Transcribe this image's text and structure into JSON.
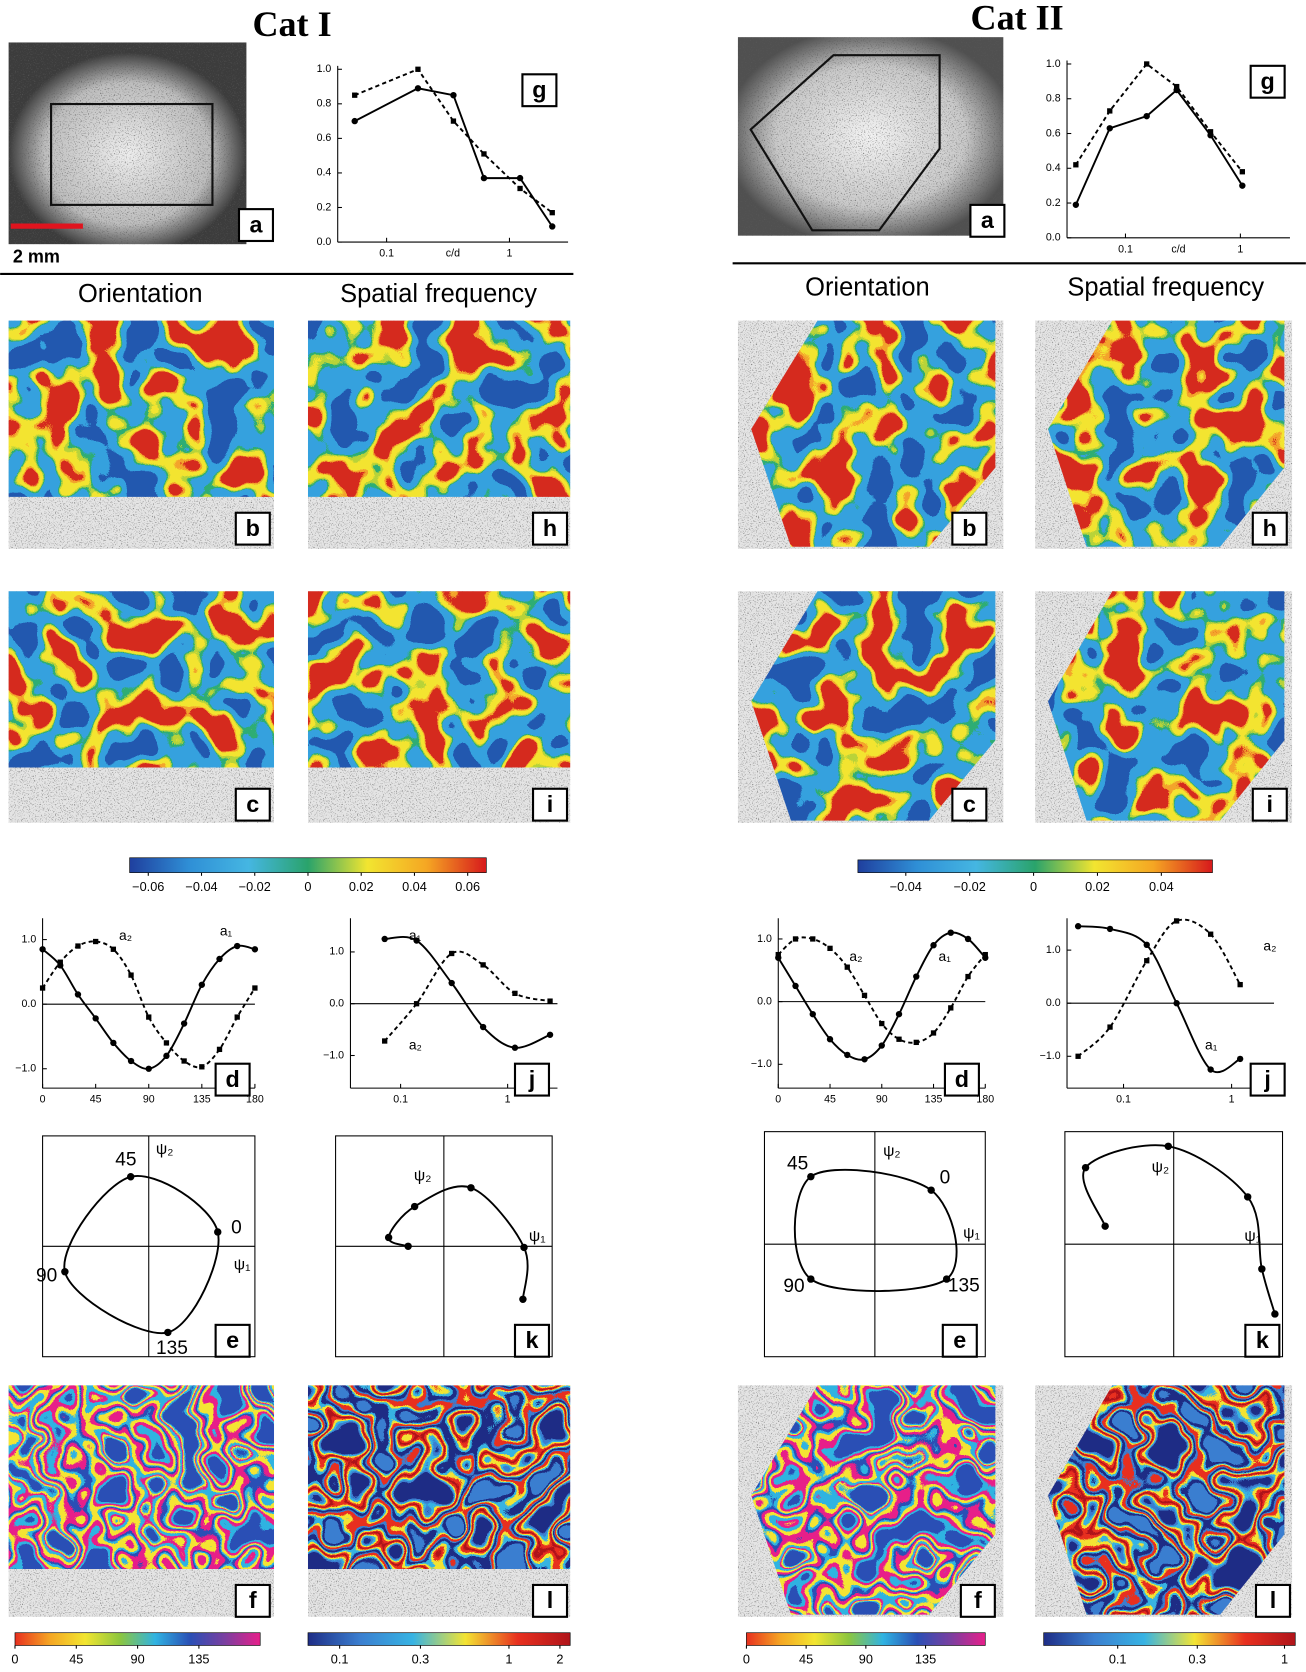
{
  "columns": [
    {
      "title": "Cat I",
      "scale_label": "2 mm",
      "headers": [
        "Orientation",
        "Spatial frequency"
      ],
      "letters": [
        "a",
        "b",
        "c",
        "d",
        "e",
        "f",
        "g",
        "h",
        "i",
        "j",
        "k",
        "l"
      ]
    },
    {
      "title": "Cat II",
      "headers": [
        "Orientation",
        "Spatial frequency"
      ],
      "letters": [
        "a",
        "b",
        "c",
        "d",
        "e",
        "f",
        "g",
        "h",
        "i",
        "j",
        "k",
        "l"
      ]
    }
  ],
  "chart_data": [
    {
      "type": "line",
      "xscale": "log",
      "xlabel": "c/d",
      "x": [
        0.055,
        0.18,
        0.35,
        0.62,
        1.22,
        2.23
      ],
      "series": [
        {
          "color": "#000000",
          "marker": "circle",
          "values": [
            0.7,
            0.89,
            0.85,
            0.37,
            0.37,
            0.09
          ]
        },
        {
          "color": "#000000",
          "marker": "square",
          "dash": true,
          "values": [
            0.85,
            1.0,
            0.7,
            0.51,
            0.31,
            0.17
          ]
        }
      ],
      "xlim": [
        0.04,
        3
      ],
      "ylim": [
        0,
        1.02
      ],
      "xticks": [
        0.1,
        1
      ],
      "yticks": [
        {
          "value": 0,
          "label": "0.0"
        },
        0.2,
        0.4,
        0.6,
        0.8,
        {
          "value": 1,
          "label": "1.0"
        }
      ]
    },
    {
      "type": "line",
      "xscale": "log",
      "xlabel": "c/d",
      "x": [
        0.037,
        0.073,
        0.153,
        0.279,
        0.55,
        1.04
      ],
      "series": [
        {
          "color": "#000000",
          "marker": "circle",
          "values": [
            0.19,
            0.63,
            0.7,
            0.85,
            0.59,
            0.3
          ]
        },
        {
          "color": "#000000",
          "marker": "square",
          "dash": true,
          "values": [
            0.42,
            0.73,
            1.0,
            0.87,
            0.61,
            0.38
          ]
        }
      ],
      "xlim": [
        0.031,
        2.7
      ],
      "ylim": [
        0,
        1.02
      ],
      "xticks": [
        0.1,
        1
      ],
      "yticks": [
        {
          "value": 0,
          "label": "0.0"
        },
        0.2,
        0.4,
        0.6,
        0.8,
        {
          "value": 1,
          "label": "1.0"
        }
      ]
    },
    {
      "type": "colorbar",
      "xlim": [
        -0.067,
        0.067
      ],
      "colors": [
        "#1f3f9e",
        "#2f8fd6",
        "#45b6e2",
        "#2aa36b",
        "#f2e530",
        "#f5a623",
        "#d7191c"
      ],
      "xticks": [
        {
          "value": -0.06,
          "label": "−0.06"
        },
        {
          "value": -0.04,
          "label": "−0.04"
        },
        {
          "value": -0.02,
          "label": "−0.02"
        },
        0,
        0.02,
        0.04,
        0.06
      ]
    },
    {
      "type": "colorbar",
      "xlim": [
        -0.055,
        0.056
      ],
      "colors": [
        "#1f3f9e",
        "#2f8fd6",
        "#45b6e2",
        "#2aa36b",
        "#f2e530",
        "#f5a623",
        "#d7191c"
      ],
      "xticks": [
        {
          "value": -0.04,
          "label": "−0.04"
        },
        {
          "value": -0.02,
          "label": "−0.02"
        },
        0,
        0.02,
        0.04
      ]
    },
    {
      "type": "line",
      "smooth": true,
      "x": [
        0,
        15,
        30,
        45,
        60,
        75,
        90,
        105,
        120,
        135,
        150,
        165,
        180
      ],
      "series": [
        {
          "name": "a₁",
          "color": "#000000",
          "marker": "circle",
          "values": [
            0.85,
            0.6,
            0.15,
            -0.22,
            -0.6,
            -0.88,
            -1.0,
            -0.8,
            -0.3,
            0.3,
            0.7,
            0.9,
            0.85
          ]
        },
        {
          "name": "a₂",
          "color": "#000000",
          "marker": "square",
          "dash": true,
          "values": [
            0.25,
            0.65,
            0.9,
            0.97,
            0.85,
            0.45,
            -0.2,
            -0.6,
            -0.88,
            -0.97,
            -0.7,
            -0.2,
            0.25
          ]
        }
      ],
      "xlim": [
        0,
        180
      ],
      "ylim": [
        -1.3,
        1.33
      ],
      "xticks": [
        0,
        45,
        90,
        135,
        180
      ],
      "yticks": [
        {
          "value": 1,
          "label": "1.0"
        },
        {
          "value": 0,
          "label": "0.0"
        },
        {
          "value": -1,
          "label": "−1.0"
        }
      ]
    },
    {
      "type": "line",
      "smooth": true,
      "xscale": "log",
      "x": [
        0.071,
        0.141,
        0.3,
        0.59,
        1.17,
        2.49
      ],
      "series": [
        {
          "name": "a₁",
          "color": "#000000",
          "marker": "circle",
          "values": [
            1.25,
            1.22,
            0.4,
            -0.45,
            -0.85,
            -0.6
          ]
        },
        {
          "name": "a₂",
          "color": "#000000",
          "marker": "square",
          "dash": true,
          "values": [
            -0.72,
            0.0,
            0.97,
            0.75,
            0.2,
            0.05
          ]
        }
      ],
      "xlim": [
        0.034,
        2.92
      ],
      "ylim": [
        -1.63,
        1.65
      ],
      "xticks": [
        0.1,
        1
      ],
      "yticks": [
        {
          "value": 1,
          "label": "1.0"
        },
        {
          "value": 0,
          "label": "0.0"
        },
        {
          "value": -1,
          "label": "−1.0"
        }
      ]
    },
    {
      "type": "line",
      "smooth": true,
      "x": [
        0,
        15,
        30,
        45,
        60,
        75,
        90,
        105,
        120,
        135,
        150,
        165,
        180
      ],
      "series": [
        {
          "name": "a₁",
          "color": "#000000",
          "marker": "circle",
          "values": [
            0.7,
            0.25,
            -0.2,
            -0.6,
            -0.85,
            -0.92,
            -0.7,
            -0.2,
            0.4,
            0.9,
            1.1,
            1.0,
            0.7
          ]
        },
        {
          "name": "a₂",
          "color": "#000000",
          "marker": "square",
          "dash": true,
          "values": [
            0.75,
            1.0,
            1.0,
            0.85,
            0.55,
            0.1,
            -0.35,
            -0.6,
            -0.65,
            -0.5,
            -0.1,
            0.4,
            0.75
          ]
        }
      ],
      "xlim": [
        0,
        180
      ],
      "ylim": [
        -1.38,
        1.33
      ],
      "xticks": [
        0,
        45,
        90,
        135,
        180
      ],
      "yticks": [
        {
          "value": 1,
          "label": "1.0"
        },
        {
          "value": 0,
          "label": "0.0"
        },
        {
          "value": -1,
          "label": "−1.0"
        }
      ]
    },
    {
      "type": "line",
      "smooth": true,
      "xscale": "log",
      "x": [
        0.038,
        0.075,
        0.164,
        0.31,
        0.64,
        1.2
      ],
      "series": [
        {
          "name": "a₁",
          "color": "#000000",
          "marker": "circle",
          "values": [
            1.45,
            1.4,
            1.1,
            0.0,
            -1.25,
            -1.05
          ]
        },
        {
          "name": "a₂",
          "color": "#000000",
          "marker": "square",
          "dash": true,
          "values": [
            -1.0,
            -0.45,
            0.8,
            1.55,
            1.3,
            0.35
          ]
        }
      ],
      "xlim": [
        0.03,
        2.47
      ],
      "ylim": [
        -1.6,
        1.6
      ],
      "xticks": [
        0.1,
        1
      ],
      "yticks": [
        {
          "value": 1,
          "label": "1.0"
        },
        {
          "value": 0,
          "label": "0.0"
        },
        {
          "value": -1,
          "label": "−1.0"
        }
      ]
    },
    {
      "type": "curve",
      "closed": true,
      "xlabel": "ψ₁",
      "ylabel": "ψ₂",
      "x": [
        0.65,
        -0.17,
        -0.79,
        0.18
      ],
      "y": [
        0.13,
        0.63,
        -0.23,
        -0.78
      ],
      "labels": [
        "0",
        "45",
        "90",
        "135"
      ],
      "xlim": [
        -1,
        1
      ],
      "ylim": [
        -1,
        1
      ]
    },
    {
      "type": "curve",
      "xlabel": "ψ₁",
      "ylabel": "ψ₂",
      "x": [
        -0.33,
        -0.51,
        -0.27,
        0.25,
        0.74,
        0.73
      ],
      "y": [
        0.0,
        0.08,
        0.36,
        0.53,
        -0.01,
        -0.48
      ],
      "xlim": [
        -1,
        1
      ],
      "ylim": [
        -1,
        1
      ]
    },
    {
      "type": "curve",
      "closed": true,
      "xlabel": "ψ₁",
      "ylabel": "ψ₂",
      "x": [
        0.51,
        -0.58,
        -0.58,
        0.65
      ],
      "y": [
        0.48,
        0.6,
        -0.31,
        -0.31
      ],
      "labels": [
        "0",
        "45",
        "90",
        "135"
      ],
      "xlim": [
        -1,
        1
      ],
      "ylim": [
        -1,
        1
      ]
    },
    {
      "type": "curve",
      "xlabel": "ψ₁",
      "ylabel": "ψ₂",
      "x": [
        -0.63,
        -0.81,
        -0.05,
        0.68,
        0.81,
        0.93
      ],
      "y": [
        0.16,
        0.68,
        0.87,
        0.42,
        -0.22,
        -0.62
      ],
      "xlim": [
        -1,
        1
      ],
      "ylim": [
        -1,
        1
      ]
    },
    {
      "type": "colorbar",
      "xlim": [
        0,
        180
      ],
      "colors": [
        "#e8301f",
        "#f5a623",
        "#f2e530",
        "#8cc63f",
        "#30b3e2",
        "#2a4fb5",
        "#7b3fa0",
        "#e71f8a"
      ],
      "xticks": [
        0,
        45,
        90,
        135
      ]
    },
    {
      "type": "colorbar",
      "xscale": "log",
      "xlim": [
        0.065,
        2.3
      ],
      "colors": [
        "#1e2d86",
        "#3b7fd0",
        "#37b3e3",
        "#f3e433",
        "#e8301f",
        "#b0141a"
      ],
      "xticks": [
        0.1,
        0.3,
        1,
        2
      ]
    },
    {
      "type": "colorbar",
      "xlim": [
        0,
        180
      ],
      "colors": [
        "#e8301f",
        "#f5a623",
        "#f2e530",
        "#8cc63f",
        "#30b3e2",
        "#2a4fb5",
        "#7b3fa0",
        "#e71f8a"
      ],
      "xticks": [
        0,
        45,
        90,
        135
      ]
    },
    {
      "type": "colorbar",
      "xscale": "log",
      "xlim": [
        0.036,
        1.16
      ],
      "colors": [
        "#1e2d86",
        "#3b7fd0",
        "#37b3e3",
        "#f3e433",
        "#e8301f",
        "#b0141a"
      ],
      "xticks": [
        0.1,
        0.3,
        1
      ]
    }
  ]
}
